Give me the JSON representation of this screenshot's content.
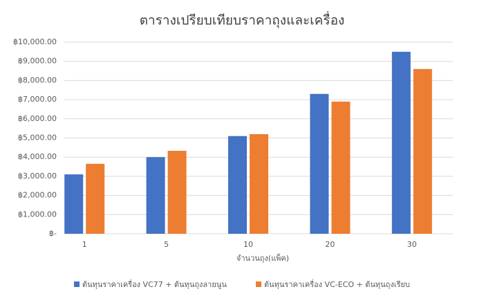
{
  "chart_data": {
    "type": "bar",
    "title": "ตารางเปรียบเทียบราคาถุงและเครื่อง",
    "x_label": "จำนวนถุง(แพ็ค)",
    "categories": [
      "1",
      "5",
      "10",
      "20",
      "30"
    ],
    "series": [
      {
        "name": "ต้นทุนราคาเครื่อง VC77 + ต้นทุนถุงลายนูน",
        "color": "#4472c4",
        "values": [
          3100,
          4000,
          5100,
          7300,
          9500
        ]
      },
      {
        "name": "ต้นทุนราคาเครื่อง VC-ECO + ต้นทุนถุงเรียบ",
        "color": "#ed7d31",
        "values": [
          3650,
          4330,
          5200,
          6900,
          8600
        ]
      }
    ],
    "ylim": [
      0,
      10000
    ],
    "yticks": [
      {
        "value": 0,
        "label": "฿-"
      },
      {
        "value": 1000,
        "label": "฿1,000.00"
      },
      {
        "value": 2000,
        "label": "฿2,000.00"
      },
      {
        "value": 3000,
        "label": "฿3,000.00"
      },
      {
        "value": 4000,
        "label": "฿4,000.00"
      },
      {
        "value": 5000,
        "label": "฿5,000.00"
      },
      {
        "value": 6000,
        "label": "฿6,000.00"
      },
      {
        "value": 7000,
        "label": "฿7,000.00"
      },
      {
        "value": 8000,
        "label": "฿8,000.00"
      },
      {
        "value": 9000,
        "label": "฿9,000.00"
      },
      {
        "value": 10000,
        "label": "฿10,000.00"
      }
    ],
    "grid": true,
    "legend": "bottom"
  }
}
